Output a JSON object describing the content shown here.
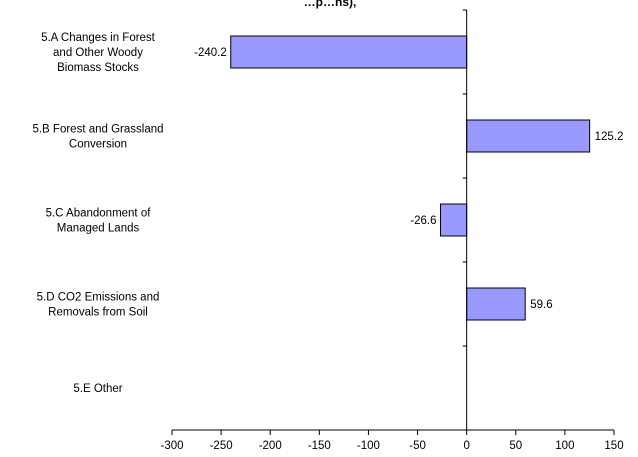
{
  "chart_data": {
    "type": "bar",
    "orientation": "horizontal",
    "title": "…p…ns),",
    "categories": [
      [
        "5.A Changes in Forest",
        "and Other Woody",
        "Biomass Stocks"
      ],
      [
        "5.B Forest and Grassland",
        "Conversion"
      ],
      [
        "5.C Abandonment of",
        "Managed Lands"
      ],
      [
        "5.D CO2 Emissions and",
        "Removals from Soil"
      ],
      [
        "5.E Other"
      ]
    ],
    "values": [
      -240.2,
      125.2,
      -26.6,
      59.6,
      null
    ],
    "data_labels": [
      "-240.2",
      "125.2",
      "-26.6",
      "59.6",
      ""
    ],
    "xlim": [
      -300,
      150
    ],
    "xticks": [
      -300,
      -250,
      -200,
      -150,
      -100,
      -50,
      0,
      50,
      100,
      150
    ],
    "xlabel": "",
    "ylabel": "",
    "grid": false,
    "legend": "none",
    "bar_color": "#9999ff",
    "bar_border_color": "#000000"
  }
}
